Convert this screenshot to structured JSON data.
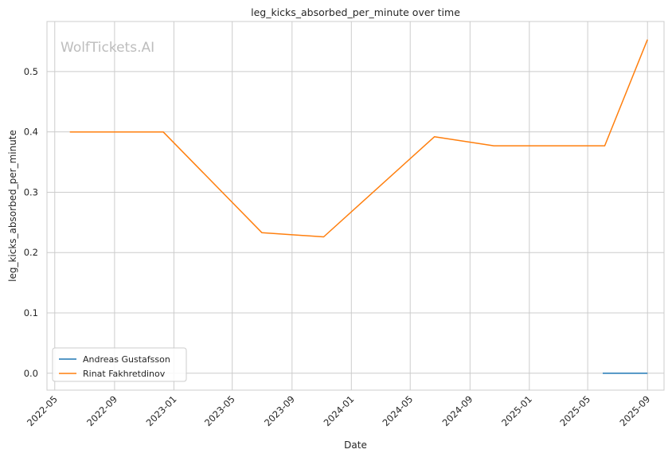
{
  "chart_data": {
    "type": "line",
    "title": "leg_kicks_absorbed_per_minute over time",
    "xlabel": "Date",
    "ylabel": "leg_kicks_absorbed_per_minute",
    "watermark": "WolfTickets.AI",
    "grid": true,
    "legend_position": "lower-left",
    "xlim": [
      "2022-04-15",
      "2025-10-05"
    ],
    "ylim": [
      -0.028,
      0.583
    ],
    "x_ticks": [
      "2022-05",
      "2022-09",
      "2023-01",
      "2023-05",
      "2023-09",
      "2024-01",
      "2024-05",
      "2024-09",
      "2025-01",
      "2025-05",
      "2025-09"
    ],
    "y_ticks": [
      "0.0",
      "0.1",
      "0.2",
      "0.3",
      "0.4",
      "0.5"
    ],
    "series": [
      {
        "name": "Andreas Gustafsson",
        "color": "#1f77b4",
        "points": [
          {
            "x": "2025-06-01",
            "y": 0.0
          },
          {
            "x": "2025-09-01",
            "y": 0.0
          }
        ]
      },
      {
        "name": "Rinat Fakhretdinov",
        "color": "#ff7f0e",
        "points": [
          {
            "x": "2022-06-01",
            "y": 0.4
          },
          {
            "x": "2022-12-10",
            "y": 0.4
          },
          {
            "x": "2023-07-01",
            "y": 0.233
          },
          {
            "x": "2023-11-05",
            "y": 0.226
          },
          {
            "x": "2024-06-20",
            "y": 0.392
          },
          {
            "x": "2024-10-20",
            "y": 0.377
          },
          {
            "x": "2025-06-05",
            "y": 0.377
          },
          {
            "x": "2025-09-01",
            "y": 0.553
          }
        ]
      }
    ]
  }
}
